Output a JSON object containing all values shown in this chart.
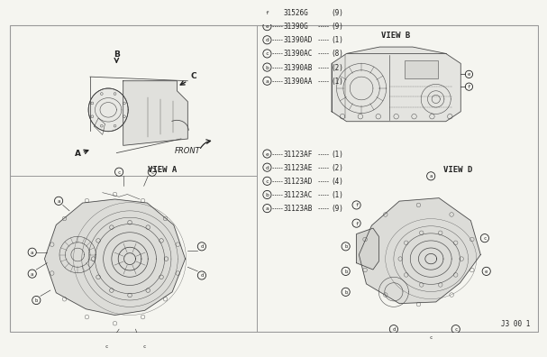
{
  "bg_color": "#f5f5f0",
  "line_color": "#444444",
  "text_color": "#222222",
  "border_color": "#999999",
  "part_legend_top": [
    {
      "label": "a",
      "part": "31390AA",
      "qty": "(1)"
    },
    {
      "label": "b",
      "part": "31390AB",
      "qty": "(2)"
    },
    {
      "label": "c",
      "part": "31390AC",
      "qty": "(8)"
    },
    {
      "label": "d",
      "part": "31390AD",
      "qty": "(1)"
    },
    {
      "label": "e",
      "part": "31390G",
      "qty": "(9)"
    },
    {
      "label": "f",
      "part": "31526G",
      "qty": "(9)"
    }
  ],
  "part_legend_bottom": [
    {
      "label": "a",
      "part": "31123AB",
      "qty": "(9)"
    },
    {
      "label": "b",
      "part": "31123AC",
      "qty": "(1)"
    },
    {
      "label": "c",
      "part": "31123AD",
      "qty": "(4)"
    },
    {
      "label": "d",
      "part": "31123AE",
      "qty": "(2)"
    },
    {
      "label": "e",
      "part": "31123AF",
      "qty": "(1)"
    }
  ],
  "diagram_ref": "J3 00 1"
}
